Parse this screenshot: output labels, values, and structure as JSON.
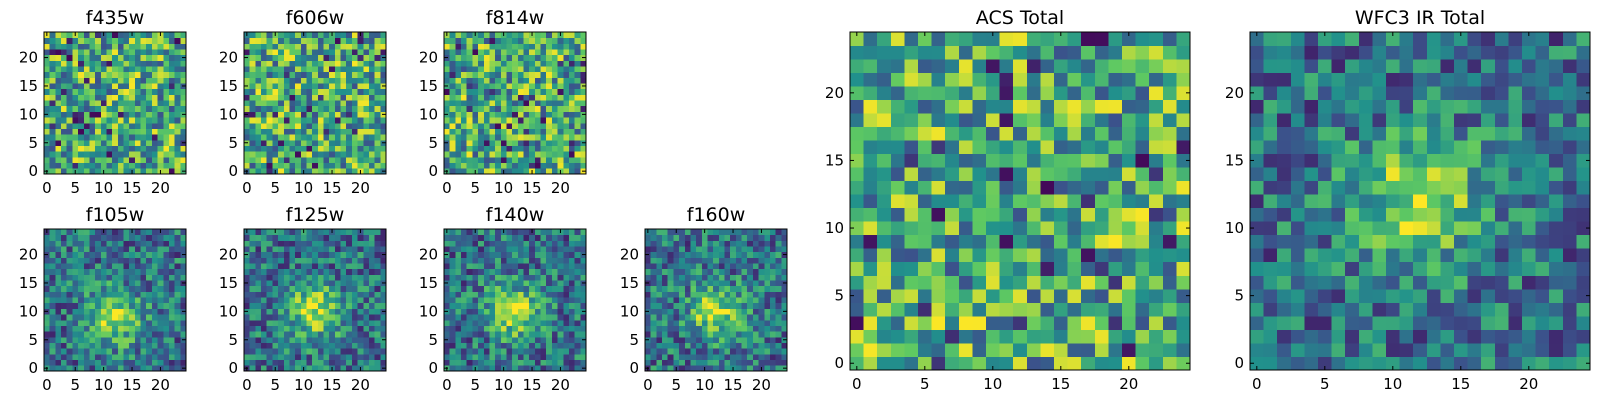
{
  "figure": {
    "colormap": [
      "#440154",
      "#3b528b",
      "#21918c",
      "#5ec962",
      "#fde725"
    ],
    "background": "#ffffff"
  },
  "chart_data": [
    {
      "type": "heatmap",
      "title": "f435w",
      "xlabel": "",
      "ylabel": "",
      "grid_size": 25,
      "xlim": [
        -0.5,
        24.5
      ],
      "ylim": [
        -0.5,
        24.5
      ],
      "xticks": [
        0,
        5,
        10,
        15,
        20
      ],
      "yticks": [
        0,
        5,
        10,
        15,
        20
      ],
      "grid": false,
      "pattern": "noise",
      "seed": 11
    },
    {
      "type": "heatmap",
      "title": "f606w",
      "xlabel": "",
      "ylabel": "",
      "grid_size": 25,
      "xlim": [
        -0.5,
        24.5
      ],
      "ylim": [
        -0.5,
        24.5
      ],
      "xticks": [
        0,
        5,
        10,
        15,
        20
      ],
      "yticks": [
        0,
        5,
        10,
        15,
        20
      ],
      "grid": false,
      "pattern": "noise",
      "seed": 23
    },
    {
      "type": "heatmap",
      "title": "f814w",
      "xlabel": "",
      "ylabel": "",
      "grid_size": 25,
      "xlim": [
        -0.5,
        24.5
      ],
      "ylim": [
        -0.5,
        24.5
      ],
      "xticks": [
        0,
        5,
        10,
        15,
        20
      ],
      "yticks": [
        0,
        5,
        10,
        15,
        20
      ],
      "grid": false,
      "pattern": "noise",
      "seed": 37
    },
    {
      "type": "heatmap",
      "title": "f105w",
      "xlabel": "",
      "ylabel": "",
      "grid_size": 25,
      "xlim": [
        -0.5,
        24.5
      ],
      "ylim": [
        -0.5,
        24.5
      ],
      "xticks": [
        0,
        5,
        10,
        15,
        20
      ],
      "yticks": [
        0,
        5,
        10,
        15,
        20
      ],
      "grid": false,
      "pattern": "source",
      "source_center": [
        12,
        9
      ],
      "seed": 41
    },
    {
      "type": "heatmap",
      "title": "f125w",
      "xlabel": "",
      "ylabel": "",
      "grid_size": 25,
      "xlim": [
        -0.5,
        24.5
      ],
      "ylim": [
        -0.5,
        24.5
      ],
      "xticks": [
        0,
        5,
        10,
        15,
        20
      ],
      "yticks": [
        0,
        5,
        10,
        15,
        20
      ],
      "grid": false,
      "pattern": "source",
      "source_center": [
        12,
        10
      ],
      "seed": 53
    },
    {
      "type": "heatmap",
      "title": "f140w",
      "xlabel": "",
      "ylabel": "",
      "grid_size": 25,
      "xlim": [
        -0.5,
        24.5
      ],
      "ylim": [
        -0.5,
        24.5
      ],
      "xticks": [
        0,
        5,
        10,
        15,
        20
      ],
      "yticks": [
        0,
        5,
        10,
        15,
        20
      ],
      "grid": false,
      "pattern": "source",
      "source_center": [
        12,
        10
      ],
      "seed": 67
    },
    {
      "type": "heatmap",
      "title": "f160w",
      "xlabel": "",
      "ylabel": "",
      "grid_size": 25,
      "xlim": [
        -0.5,
        24.5
      ],
      "ylim": [
        -0.5,
        24.5
      ],
      "xticks": [
        0,
        5,
        10,
        15,
        20
      ],
      "yticks": [
        0,
        5,
        10,
        15,
        20
      ],
      "grid": false,
      "pattern": "source",
      "source_center": [
        12,
        10
      ],
      "seed": 79
    },
    {
      "type": "heatmap",
      "title": "ACS Total",
      "xlabel": "",
      "ylabel": "",
      "grid_size": 25,
      "xlim": [
        -0.5,
        24.5
      ],
      "ylim": [
        -0.5,
        24.5
      ],
      "xticks": [
        0,
        5,
        10,
        15,
        20
      ],
      "yticks": [
        0,
        5,
        10,
        15,
        20
      ],
      "grid": false,
      "pattern": "noise",
      "seed": 97
    },
    {
      "type": "heatmap",
      "title": "WFC3 IR Total",
      "xlabel": "",
      "ylabel": "",
      "grid_size": 25,
      "xlim": [
        -0.5,
        24.5
      ],
      "ylim": [
        -0.5,
        24.5
      ],
      "xticks": [
        0,
        5,
        10,
        15,
        20
      ],
      "yticks": [
        0,
        5,
        10,
        15,
        20
      ],
      "grid": false,
      "pattern": "source",
      "source_center": [
        12,
        12
      ],
      "seed": 113
    }
  ]
}
